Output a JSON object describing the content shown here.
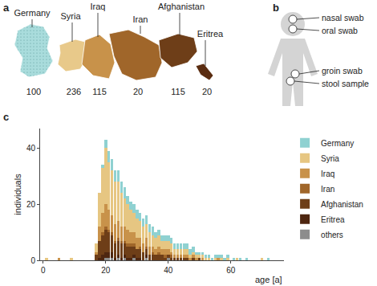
{
  "panels": [
    "a",
    "b",
    "c"
  ],
  "map": {
    "countries": [
      {
        "name": "Germany",
        "count": 100,
        "color": "#a9dcdc"
      },
      {
        "name": "Syria",
        "count": 236,
        "color": "#e8c98a"
      },
      {
        "name": "Iraq",
        "count": 115,
        "color": "#c8924a"
      },
      {
        "name": "Iran",
        "count": 20,
        "color": "#a0662a"
      },
      {
        "name": "Afghanistan",
        "count": 115,
        "color": "#6e3e18"
      },
      {
        "name": "Eritrea",
        "count": 20,
        "color": "#5a2c10"
      }
    ]
  },
  "body": {
    "labels": [
      "nasal swab",
      "oral swab",
      "groin swab",
      "stool sample"
    ]
  },
  "chart_data": {
    "type": "bar",
    "stacked": true,
    "legend": "right",
    "x_label": "age [a]",
    "y_label": "individuals",
    "xlim": [
      -1,
      77
    ],
    "xticks": [
      0,
      20,
      40,
      60
    ],
    "ylim": [
      0,
      47
    ],
    "yticks": [
      0,
      20,
      40
    ],
    "x": [
      1,
      5,
      9,
      17,
      18,
      19,
      20,
      21,
      22,
      23,
      24,
      25,
      26,
      27,
      28,
      29,
      30,
      31,
      32,
      33,
      34,
      35,
      36,
      37,
      38,
      39,
      40,
      41,
      42,
      43,
      44,
      45,
      46,
      47,
      48,
      49,
      50,
      51,
      52,
      53,
      54,
      55,
      56,
      57,
      58,
      59,
      60,
      61,
      62,
      63,
      64,
      65,
      66,
      70,
      72
    ],
    "series": [
      {
        "name": "Germany",
        "color": "#8fd1d1",
        "values": [
          0,
          0,
          0,
          0,
          0,
          1,
          3,
          4,
          4,
          4,
          4,
          4,
          4,
          3,
          3,
          3,
          3,
          3,
          3,
          3,
          3,
          3,
          2,
          2,
          2,
          2,
          2,
          2,
          2,
          2,
          2,
          2,
          2,
          2,
          2,
          1,
          1,
          1,
          1,
          1,
          1,
          1,
          1,
          1,
          1,
          1,
          0,
          1,
          0,
          1,
          0,
          1,
          0,
          0,
          1
        ]
      },
      {
        "name": "Syria",
        "color": "#e6c682",
        "values": [
          1,
          0,
          1,
          3,
          12,
          16,
          20,
          17,
          16,
          15,
          14,
          12,
          10,
          9,
          8,
          7,
          7,
          6,
          6,
          5,
          5,
          4,
          4,
          4,
          3,
          3,
          3,
          3,
          2,
          2,
          2,
          2,
          2,
          1,
          1,
          1,
          1,
          1,
          1,
          1,
          0,
          1,
          0,
          1,
          0,
          1,
          0,
          0,
          1,
          0,
          0,
          0,
          0,
          1,
          0
        ]
      },
      {
        "name": "Iraq",
        "color": "#c8924a",
        "values": [
          0,
          1,
          0,
          1,
          5,
          7,
          8,
          7,
          6,
          6,
          6,
          5,
          5,
          5,
          4,
          4,
          4,
          3,
          3,
          3,
          3,
          2,
          2,
          2,
          2,
          2,
          2,
          1,
          1,
          1,
          1,
          1,
          1,
          1,
          1,
          1,
          0,
          1,
          0,
          0,
          0,
          0,
          1,
          0,
          0,
          0,
          0,
          0,
          0,
          0,
          0,
          0,
          0,
          0,
          0
        ]
      },
      {
        "name": "Iran",
        "color": "#a0662a",
        "values": [
          0,
          0,
          0,
          0,
          0,
          1,
          1,
          1,
          1,
          1,
          1,
          1,
          1,
          1,
          1,
          1,
          0,
          1,
          0,
          1,
          0,
          1,
          0,
          1,
          0,
          1,
          0,
          1,
          0,
          0,
          0,
          0,
          0,
          0,
          0,
          0,
          0,
          0,
          0,
          0,
          0,
          0,
          0,
          0,
          0,
          0,
          0,
          0,
          0,
          0,
          0,
          0,
          0,
          0,
          0
        ]
      },
      {
        "name": "Afghanistan",
        "color": "#6e3e18",
        "values": [
          0,
          0,
          0,
          2,
          6,
          7,
          8,
          7,
          6,
          5,
          5,
          5,
          4,
          4,
          4,
          3,
          3,
          3,
          3,
          2,
          2,
          2,
          2,
          2,
          2,
          1,
          1,
          1,
          1,
          1,
          1,
          1,
          1,
          0,
          1,
          0,
          1,
          0,
          0,
          0,
          0,
          0,
          0,
          0,
          0,
          0,
          0,
          0,
          0,
          0,
          0,
          0,
          0,
          0,
          0
        ]
      },
      {
        "name": "Eritrea",
        "color": "#4e2610",
        "values": [
          0,
          0,
          0,
          0,
          1,
          2,
          2,
          2,
          2,
          1,
          1,
          1,
          1,
          1,
          1,
          1,
          1,
          1,
          0,
          1,
          0,
          0,
          0,
          0,
          0,
          0,
          0,
          0,
          0,
          0,
          0,
          0,
          0,
          0,
          0,
          0,
          0,
          0,
          0,
          0,
          0,
          0,
          0,
          0,
          0,
          0,
          0,
          0,
          0,
          0,
          0,
          0,
          0,
          0,
          0
        ]
      },
      {
        "name": "others",
        "color": "#8c8c8c",
        "values": [
          0,
          0,
          0,
          0,
          0,
          0,
          1,
          1,
          1,
          0,
          1,
          0,
          1,
          0,
          0,
          1,
          0,
          0,
          0,
          1,
          0,
          0,
          0,
          0,
          0,
          0,
          1,
          0,
          0,
          0,
          0,
          0,
          0,
          0,
          0,
          0,
          0,
          0,
          0,
          0,
          0,
          0,
          0,
          0,
          0,
          0,
          0,
          0,
          0,
          0,
          0,
          0,
          0,
          0,
          0
        ]
      }
    ]
  }
}
